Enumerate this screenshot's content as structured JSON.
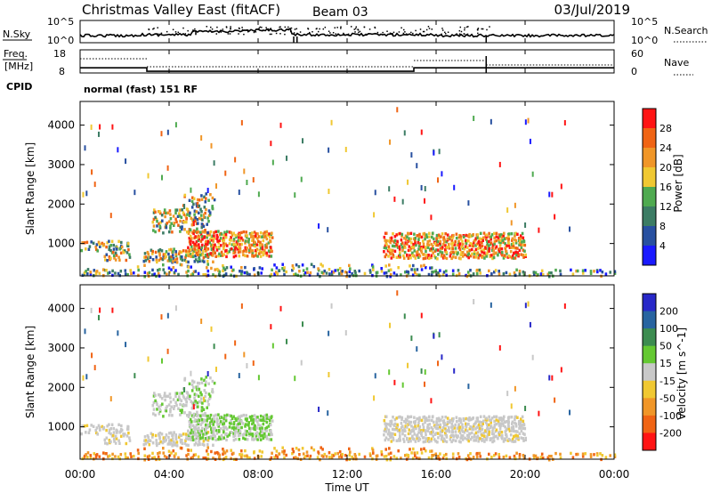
{
  "header": {
    "station": "Christmas Valley East (fitACF)",
    "beam": "Beam 03",
    "date": "03/Jul/2019"
  },
  "chart_data": [
    {
      "type": "line",
      "name": "noise-panel",
      "left_label": "N.Sky",
      "right_label": "N.Search",
      "left_ticks": [
        "10^5",
        "10^0"
      ],
      "right_ticks": [
        "10^5",
        "10^0"
      ]
    },
    {
      "type": "line",
      "name": "freq-nave-panel",
      "left_label_1": "Freq.",
      "left_label_2": "[MHz]",
      "right_label": "Nave",
      "left_ticks": [
        "18",
        "8"
      ],
      "right_ticks": [
        "60",
        "0"
      ],
      "freq_mhz": [
        {
          "start": "00:00",
          "end": "03:00",
          "value": 11
        },
        {
          "start": "03:00",
          "end": "15:00",
          "value": 9.5
        },
        {
          "start": "15:00",
          "end": "18:15",
          "value": 11
        },
        {
          "start": "18:15",
          "end": "24:00",
          "value": 11
        }
      ]
    },
    {
      "type": "heatmap",
      "name": "cpid",
      "label": "CPID",
      "value": "normal (fast) 151 RF"
    },
    {
      "type": "heatmap",
      "name": "power",
      "ylabel": "Slant Range [km]",
      "yticks": [
        1000,
        2000,
        3000,
        4000
      ],
      "ylim": [
        180,
        4600
      ],
      "colorbar_label": "Power [dB]",
      "colorbar_ticks": [
        4,
        8,
        12,
        16,
        20,
        24,
        28
      ],
      "colorbar_range": [
        0,
        32
      ],
      "colors": [
        "#1a1aff",
        "#2850a0",
        "#3c7c64",
        "#4faa50",
        "#f0c832",
        "#f09628",
        "#f06414",
        "#ff1414"
      ]
    },
    {
      "type": "heatmap",
      "name": "velocity",
      "ylabel": "Slant Range [km]",
      "yticks": [
        1000,
        2000,
        3000,
        4000
      ],
      "ylim": [
        180,
        4600
      ],
      "colorbar_label": "Velocity [m s^-1]",
      "colorbar_ticks": [
        "200",
        "100",
        "50",
        "15",
        "-15",
        "-50",
        "-100",
        "-200"
      ],
      "colors": [
        "#2828c8",
        "#2864a0",
        "#3c8c50",
        "#64c832",
        "#c8c8c8",
        "#f0c832",
        "#f09628",
        "#f06414",
        "#ff1414"
      ]
    },
    {
      "type": "line",
      "name": "time-axis",
      "xticks": [
        "00:00",
        "04:00",
        "08:00",
        "12:00",
        "16:00",
        "20:00",
        "00:00"
      ],
      "xlabel": "Time UT"
    }
  ]
}
